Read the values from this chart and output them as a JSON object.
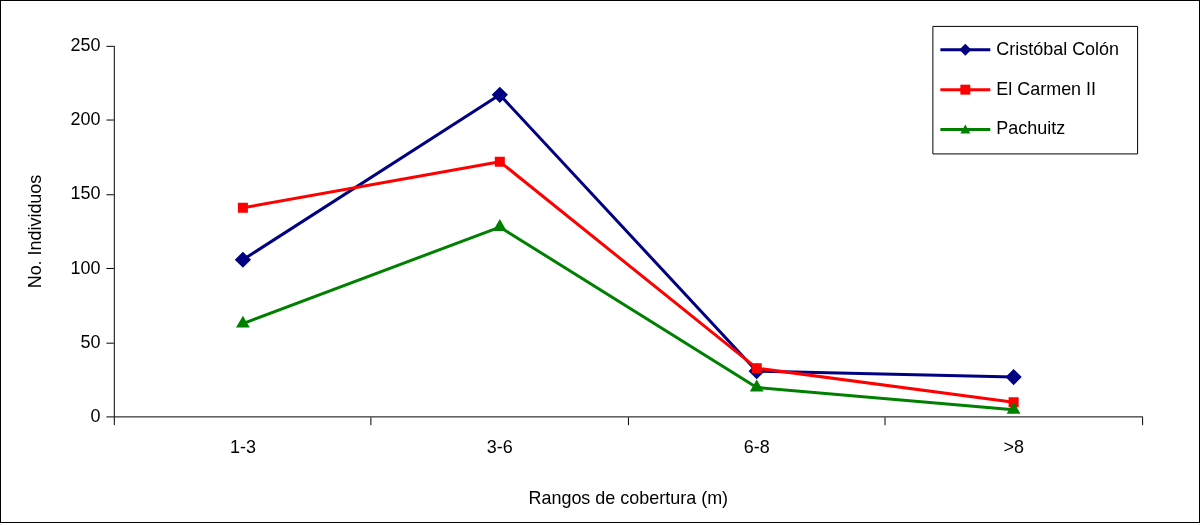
{
  "chart_data": {
    "type": "line",
    "xlabel": "Rangos de cobertura (m)",
    "ylabel": "No. Individuos",
    "categories": [
      "1-3",
      "3-6",
      "6-8",
      ">8"
    ],
    "series": [
      {
        "name": "Cristóbal Colón",
        "color": "#000080",
        "marker": "diamond",
        "values": [
          106,
          217,
          31,
          27
        ]
      },
      {
        "name": "El Carmen II",
        "color": "#ff0000",
        "marker": "square",
        "values": [
          141,
          172,
          33,
          10
        ]
      },
      {
        "name": "Pachuitz",
        "color": "#008000",
        "marker": "triangle",
        "values": [
          63,
          128,
          20,
          5
        ]
      }
    ],
    "ylim": [
      0,
      250
    ],
    "yticks": [
      0,
      50,
      100,
      150,
      200,
      250
    ],
    "grid": false,
    "legend": "top right",
    "line_style": "solid"
  }
}
